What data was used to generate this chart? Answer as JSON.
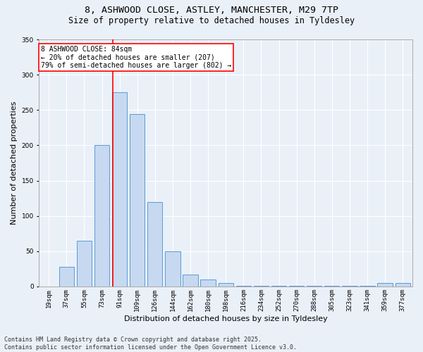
{
  "title_line1": "8, ASHWOOD CLOSE, ASTLEY, MANCHESTER, M29 7TP",
  "title_line2": "Size of property relative to detached houses in Tyldesley",
  "xlabel": "Distribution of detached houses by size in Tyldesley",
  "ylabel": "Number of detached properties",
  "footnote": "Contains HM Land Registry data © Crown copyright and database right 2025.\nContains public sector information licensed under the Open Government Licence v3.0.",
  "categories": [
    "19sqm",
    "37sqm",
    "55sqm",
    "73sqm",
    "91sqm",
    "109sqm",
    "126sqm",
    "144sqm",
    "162sqm",
    "180sqm",
    "198sqm",
    "216sqm",
    "234sqm",
    "252sqm",
    "270sqm",
    "288sqm",
    "305sqm",
    "323sqm",
    "341sqm",
    "359sqm",
    "377sqm"
  ],
  "values": [
    0,
    28,
    65,
    200,
    275,
    244,
    120,
    50,
    17,
    10,
    5,
    1,
    1,
    1,
    1,
    1,
    1,
    1,
    1,
    5,
    5
  ],
  "bar_color": "#c6d9f0",
  "bar_edge_color": "#5b9bd5",
  "vline_color": "red",
  "annotation_text": "8 ASHWOOD CLOSE: 84sqm\n← 20% of detached houses are smaller (207)\n79% of semi-detached houses are larger (802) →",
  "annotation_box_color": "white",
  "annotation_box_edge": "red",
  "ylim_max": 350,
  "background_color": "#eaf0f8",
  "grid_color": "#ffffff",
  "title_fontsize": 9.5,
  "subtitle_fontsize": 8.5,
  "axis_label_fontsize": 8,
  "tick_fontsize": 6.5,
  "footnote_fontsize": 6,
  "annotation_fontsize": 7
}
